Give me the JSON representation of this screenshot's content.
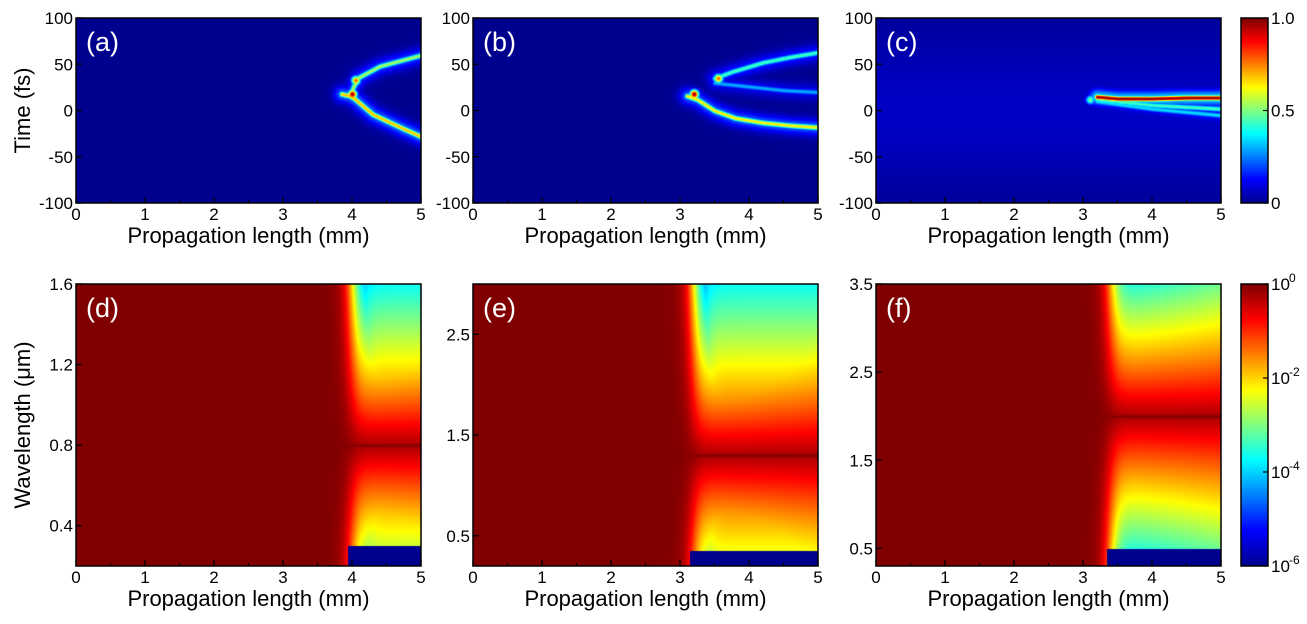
{
  "colormap": [
    "#00008f",
    "#0000ff",
    "#0080ff",
    "#00ffff",
    "#80ff80",
    "#ffff00",
    "#ff8000",
    "#ff0000",
    "#800000"
  ],
  "chart_data": [
    {
      "type": "heatmap",
      "panel_label": "(a)",
      "xlabel": "Propagation length (mm)",
      "ylabel": "Time (fs)",
      "xlim": [
        0,
        5
      ],
      "ylim": [
        -100,
        100
      ],
      "xticks": [
        "0",
        "1",
        "2",
        "3",
        "4",
        "5"
      ],
      "yticks": [
        "-100",
        "-50",
        "0",
        "50",
        "100"
      ],
      "features": [
        {
          "kind": "curve",
          "points": [
            [
              3.85,
              18
            ],
            [
              3.97,
              16
            ],
            [
              4.05,
              12
            ],
            [
              4.3,
              -4
            ],
            [
              4.7,
              -18
            ],
            [
              5.0,
              -28
            ]
          ],
          "level": 0.7
        },
        {
          "kind": "curve",
          "points": [
            [
              3.97,
              16
            ],
            [
              4.02,
              26
            ],
            [
              4.1,
              36
            ],
            [
              4.4,
              48
            ],
            [
              4.8,
              56
            ],
            [
              5.0,
              60
            ]
          ],
          "level": 0.55
        },
        {
          "kind": "spot",
          "x": 4.0,
          "y": 18,
          "level": 1.0
        },
        {
          "kind": "spot",
          "x": 4.05,
          "y": 33,
          "level": 0.8
        }
      ]
    },
    {
      "type": "heatmap",
      "panel_label": "(b)",
      "xlabel": "Propagation length (mm)",
      "ylabel": "",
      "xlim": [
        0,
        5
      ],
      "ylim": [
        -100,
        100
      ],
      "xticks": [
        "0",
        "1",
        "2",
        "3",
        "4",
        "5"
      ],
      "yticks": [
        "-100",
        "-50",
        "0",
        "50",
        "100"
      ],
      "features": [
        {
          "kind": "curve",
          "points": [
            [
              3.1,
              16
            ],
            [
              3.25,
              12
            ],
            [
              3.5,
              0
            ],
            [
              3.8,
              -8
            ],
            [
              4.2,
              -13
            ],
            [
              4.6,
              -16
            ],
            [
              5.0,
              -18
            ]
          ],
          "level": 0.65
        },
        {
          "kind": "curve",
          "points": [
            [
              3.5,
              35
            ],
            [
              3.75,
              42
            ],
            [
              4.2,
              52
            ],
            [
              4.6,
              58
            ],
            [
              5.0,
              63
            ]
          ],
          "level": 0.45
        },
        {
          "kind": "curve",
          "points": [
            [
              3.5,
              30
            ],
            [
              4.0,
              26
            ],
            [
              4.5,
              22
            ],
            [
              5.0,
              20
            ]
          ],
          "level": 0.3
        },
        {
          "kind": "spot",
          "x": 3.2,
          "y": 18,
          "level": 1.0
        },
        {
          "kind": "spot",
          "x": 3.55,
          "y": 35,
          "level": 0.8
        }
      ]
    },
    {
      "type": "heatmap",
      "panel_label": "(c)",
      "xlabel": "Propagation length (mm)",
      "ylabel": "",
      "xlim": [
        0,
        5
      ],
      "ylim": [
        -100,
        100
      ],
      "xticks": [
        "0",
        "1",
        "2",
        "3",
        "4",
        "5"
      ],
      "yticks": [
        "-100",
        "-50",
        "0",
        "50",
        "100"
      ],
      "features": [
        {
          "kind": "band",
          "points": [
            [
              0,
              0
            ],
            [
              5,
              0
            ]
          ],
          "width": 60,
          "level": 0.06
        },
        {
          "kind": "curve",
          "points": [
            [
              3.2,
              15
            ],
            [
              3.5,
              13
            ],
            [
              4.0,
              13
            ],
            [
              4.5,
              14
            ],
            [
              5.0,
              14
            ]
          ],
          "level": 1.0
        },
        {
          "kind": "curve",
          "points": [
            [
              3.2,
              12
            ],
            [
              4.0,
              6
            ],
            [
              5.0,
              2
            ]
          ],
          "level": 0.45
        },
        {
          "kind": "curve",
          "points": [
            [
              3.2,
              10
            ],
            [
              4.0,
              2
            ],
            [
              5.0,
              -5
            ]
          ],
          "level": 0.35
        },
        {
          "kind": "spot",
          "x": 3.1,
          "y": 12,
          "level": 0.5
        }
      ],
      "colorbar": {
        "ticks": [
          "1.0",
          "0.5",
          "0"
        ],
        "values": [
          1.0,
          0.5,
          0.0
        ]
      }
    },
    {
      "type": "heatmap",
      "panel_label": "(d)",
      "xlabel": "Propagation length (mm)",
      "ylabel": "Wavelength (μm)",
      "xlim": [
        0,
        5
      ],
      "ylim": [
        0.2,
        1.6
      ],
      "xticks": [
        "0",
        "1",
        "2",
        "3",
        "4",
        "5"
      ],
      "yticks": [
        "0.4",
        "0.8",
        "1.2",
        "1.6"
      ],
      "center": 0.8,
      "onset": 4.0,
      "upper_edge": 1.6,
      "lower_edge": 0.3,
      "features": []
    },
    {
      "type": "heatmap",
      "panel_label": "(e)",
      "xlabel": "Propagation length (mm)",
      "ylabel": "",
      "xlim": [
        0,
        5
      ],
      "ylim": [
        0.2,
        3.0
      ],
      "xticks": [
        "0",
        "1",
        "2",
        "3",
        "4",
        "5"
      ],
      "yticks": [
        "0.5",
        "1.5",
        "2.5"
      ],
      "center": 1.3,
      "onset": 3.2,
      "upper_edge": 3.0,
      "lower_edge": 0.35,
      "features": []
    },
    {
      "type": "heatmap",
      "panel_label": "(f)",
      "xlabel": "Propagation length (mm)",
      "ylabel": "",
      "xlim": [
        0,
        5
      ],
      "ylim": [
        0.3,
        3.5
      ],
      "xticks": [
        "0",
        "1",
        "2",
        "3",
        "4",
        "5"
      ],
      "yticks": [
        "0.5",
        "1.5",
        "2.5",
        "3.5"
      ],
      "center": 2.0,
      "onset": 3.4,
      "upper_edge": 3.5,
      "lower_edge": 0.5,
      "features": [],
      "colorbar": {
        "ticks": [
          "10",
          "10",
          "10",
          "10"
        ],
        "superscripts": [
          "0",
          "-2",
          "-4",
          "-6"
        ],
        "values": [
          0,
          -2,
          -4,
          -6
        ],
        "log": true
      }
    }
  ]
}
